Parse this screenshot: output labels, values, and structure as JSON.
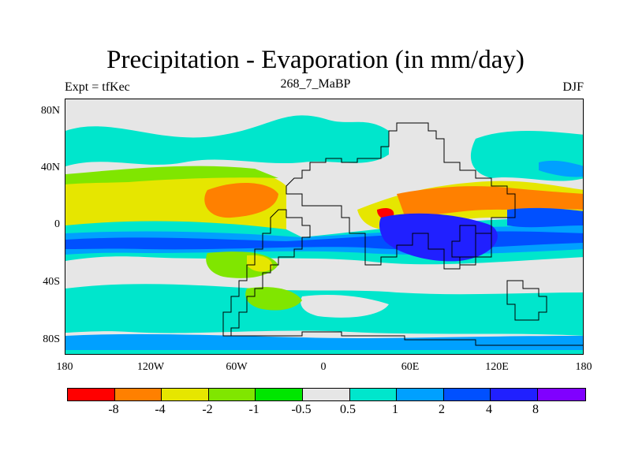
{
  "title": "Precipitation - Evaporation (in mm/day)",
  "subtitle_left": "Expt = tfKec",
  "subtitle_center": "268_7_MaBP",
  "subtitle_right": "DJF",
  "y_axis_labels": [
    "80N",
    "40N",
    "0",
    "40S",
    "80S"
  ],
  "x_axis_labels": [
    "180",
    "120W",
    "60W",
    "0",
    "60E",
    "120E",
    "180"
  ],
  "colorbar": {
    "labels": [
      "-8",
      "-4",
      "-2",
      "-1",
      "-0.5",
      "0.5",
      "1",
      "2",
      "4",
      "8"
    ],
    "colors": [
      "#ff0000",
      "#ff8000",
      "#e6e600",
      "#80e600",
      "#00e600",
      "#e6e6e6",
      "#00e6cc",
      "#00a0ff",
      "#0050ff",
      "#2020ff",
      "#8000ff"
    ]
  }
}
